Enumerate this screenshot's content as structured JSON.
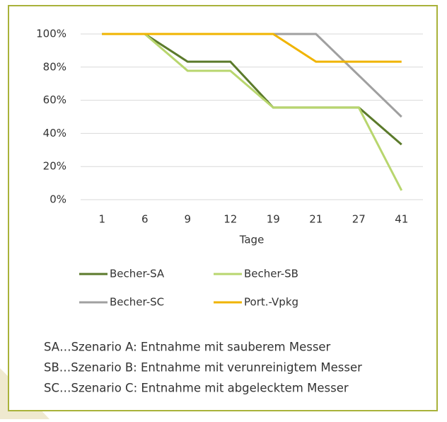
{
  "chart_data": {
    "type": "line",
    "categories": [
      "1",
      "6",
      "9",
      "12",
      "19",
      "21",
      "27",
      "41"
    ],
    "x_label": "Tage",
    "series": [
      {
        "name": "Becher-SA",
        "color": "#5b7a2b",
        "values": [
          100,
          100,
          83.3,
          83.3,
          55.6,
          55.6,
          55.6,
          33.3
        ]
      },
      {
        "name": "Becher-SB",
        "color": "#b8d66e",
        "values": [
          100,
          100,
          77.8,
          77.8,
          55.6,
          55.6,
          55.6,
          5.6
        ]
      },
      {
        "name": "Becher-SC",
        "color": "#a0a0a0",
        "values": [
          100,
          100,
          100,
          100,
          100,
          100,
          75,
          50
        ]
      },
      {
        "name": "Port.-Vpkg",
        "color": "#f0b400",
        "values": [
          100,
          100,
          100,
          100,
          100,
          83.3,
          83.3,
          83.3
        ]
      }
    ],
    "ylim": [
      0,
      100
    ],
    "yticks": [
      {
        "value": 0,
        "label": "0%"
      },
      {
        "value": 20,
        "label": "20%"
      },
      {
        "value": 40,
        "label": "40%"
      },
      {
        "value": 60,
        "label": "60%"
      },
      {
        "value": 80,
        "label": "80%"
      },
      {
        "value": 100,
        "label": "100%"
      }
    ],
    "grid": true,
    "notes": [
      "SA…Szenario A: Entnahme mit sauberem Messer",
      "SB…Szenario B: Entnahme mit verunreinigtem Messer",
      "SC…Szenario C: Entnahme mit abgelecktem Messer"
    ]
  }
}
